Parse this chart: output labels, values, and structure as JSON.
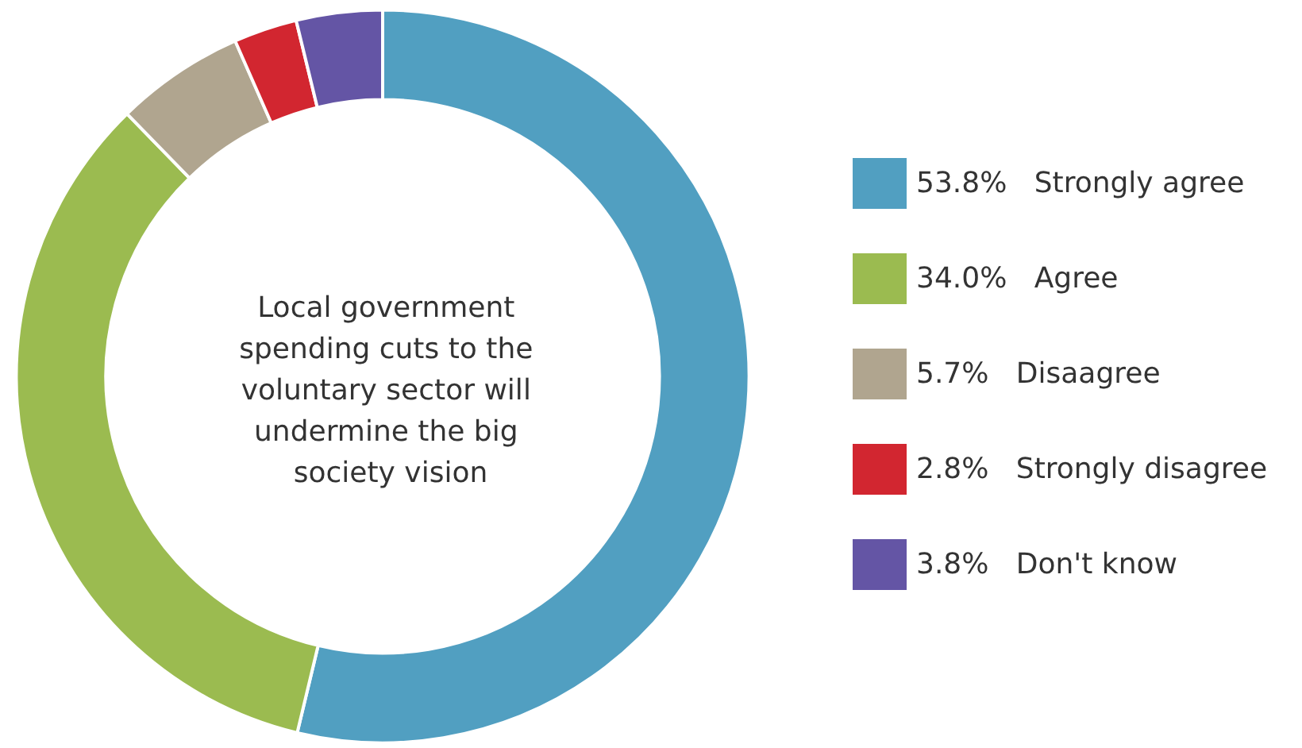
{
  "chart_data": {
    "type": "donut",
    "title": "Local government spending cuts to the voluntary sector will undermine the big society vision",
    "categories": [
      "Strongly agree",
      "Agree",
      "Disaagree",
      "Strongly disagree",
      "Don't know"
    ],
    "values": [
      53.8,
      34.0,
      5.7,
      2.8,
      3.8
    ],
    "value_labels": [
      "53.8%",
      "34.0%",
      "5.7%",
      "2.8%",
      "3.8%"
    ],
    "colors": [
      "#519fc1",
      "#9bbb50",
      "#b0a58f",
      "#d22630",
      "#6455a5"
    ],
    "legend": "right"
  }
}
